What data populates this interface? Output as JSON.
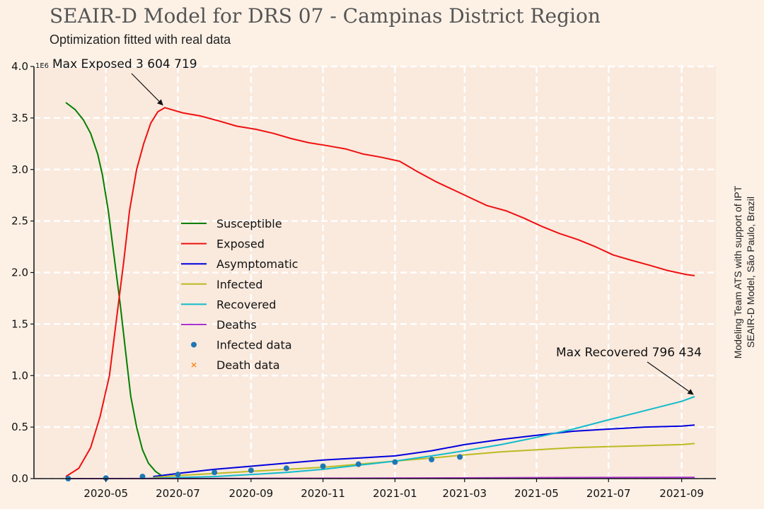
{
  "header": {
    "title": "SEAIR-D Model for DRS 07 - Campinas District Region",
    "subtitle": "Optimization fitted with real data"
  },
  "side_note": {
    "line1": "Modeling Team ATS with support of IPT",
    "line2": "SEAIR-D Model, São Paulo, Brazil"
  },
  "colors": {
    "background": "#fdf1e6",
    "plot_area": "#fae9dd",
    "grid": "#ffffff"
  },
  "chart_data": {
    "type": "line",
    "title": "SEAIR-D Model for DRS 07 - Campinas District Region",
    "subtitle": "Optimization fitted with real data",
    "xlabel": "",
    "ylabel": "",
    "y_scale_label": "1E6",
    "xlim": [
      "2020-03-01",
      "2021-09-30"
    ],
    "ylim": [
      0,
      4.0
    ],
    "grid": true,
    "legend_position": "center-left",
    "x_ticks": [
      "2020-05",
      "2020-07",
      "2020-09",
      "2020-11",
      "2021-01",
      "2021-03",
      "2021-05",
      "2021-07",
      "2021-09"
    ],
    "x_tick_dates": [
      "2020-05-01",
      "2020-07-01",
      "2020-09-01",
      "2020-11-01",
      "2021-01-01",
      "2021-03-01",
      "2021-05-01",
      "2021-07-01",
      "2021-09-01"
    ],
    "y_ticks": [
      "0.0",
      "0.5",
      "1.0",
      "1.5",
      "2.0",
      "2.5",
      "3.0",
      "3.5",
      "4.0"
    ],
    "y_tick_values": [
      0,
      0.5,
      1.0,
      1.5,
      2.0,
      2.5,
      3.0,
      3.5,
      4.0
    ],
    "series": [
      {
        "name": "Susceptible",
        "color": "#008000",
        "x": [
          "2020-03-28",
          "2020-04-05",
          "2020-04-12",
          "2020-04-18",
          "2020-04-24",
          "2020-04-28",
          "2020-05-03",
          "2020-05-08",
          "2020-05-13",
          "2020-05-18",
          "2020-05-22",
          "2020-05-27",
          "2020-06-01",
          "2020-06-06",
          "2020-06-12",
          "2020-06-17"
        ],
        "values": [
          3.65,
          3.58,
          3.48,
          3.35,
          3.15,
          2.95,
          2.6,
          2.15,
          1.7,
          1.2,
          0.8,
          0.5,
          0.28,
          0.15,
          0.07,
          0.03
        ]
      },
      {
        "name": "Exposed",
        "color": "#ee1111",
        "x": [
          "2020-03-28",
          "2020-04-08",
          "2020-04-18",
          "2020-04-26",
          "2020-05-04",
          "2020-05-10",
          "2020-05-16",
          "2020-05-21",
          "2020-05-27",
          "2020-06-02",
          "2020-06-08",
          "2020-06-14",
          "2020-06-20",
          "2020-07-05",
          "2020-07-20",
          "2020-08-05",
          "2020-08-20",
          "2020-09-05",
          "2020-09-20",
          "2020-10-05",
          "2020-10-20",
          "2020-11-05",
          "2020-11-20",
          "2020-12-05",
          "2020-12-20",
          "2021-01-05",
          "2021-01-20",
          "2021-02-05",
          "2021-02-20",
          "2021-03-05",
          "2021-03-20",
          "2021-04-05",
          "2021-04-20",
          "2021-05-05",
          "2021-05-20",
          "2021-06-05",
          "2021-06-20",
          "2021-07-05",
          "2021-07-20",
          "2021-08-05",
          "2021-08-20",
          "2021-09-05",
          "2021-09-12"
        ],
        "values": [
          0.02,
          0.1,
          0.3,
          0.6,
          1.0,
          1.55,
          2.1,
          2.6,
          3.0,
          3.25,
          3.45,
          3.56,
          3.6,
          3.55,
          3.52,
          3.47,
          3.42,
          3.39,
          3.35,
          3.3,
          3.26,
          3.23,
          3.2,
          3.15,
          3.12,
          3.08,
          2.98,
          2.88,
          2.8,
          2.73,
          2.65,
          2.6,
          2.53,
          2.45,
          2.38,
          2.32,
          2.25,
          2.17,
          2.12,
          2.07,
          2.02,
          1.98,
          1.97
        ]
      },
      {
        "name": "Asymptomatic",
        "color": "#0000dd",
        "x": [
          "2020-06-10",
          "2020-07-01",
          "2020-08-01",
          "2020-09-01",
          "2020-10-01",
          "2020-11-01",
          "2020-12-01",
          "2021-01-01",
          "2021-02-01",
          "2021-03-01",
          "2021-04-01",
          "2021-05-01",
          "2021-06-01",
          "2021-07-01",
          "2021-08-01",
          "2021-09-01",
          "2021-09-12"
        ],
        "values": [
          0.02,
          0.05,
          0.09,
          0.12,
          0.15,
          0.18,
          0.2,
          0.22,
          0.27,
          0.33,
          0.38,
          0.42,
          0.46,
          0.48,
          0.5,
          0.51,
          0.52
        ]
      },
      {
        "name": "Infected",
        "color": "#bbbb22",
        "x": [
          "2020-06-10",
          "2020-07-01",
          "2020-08-01",
          "2020-09-01",
          "2020-10-01",
          "2020-11-01",
          "2020-12-01",
          "2021-01-01",
          "2021-02-01",
          "2021-03-01",
          "2021-04-01",
          "2021-05-01",
          "2021-06-01",
          "2021-07-01",
          "2021-08-01",
          "2021-09-01",
          "2021-09-12"
        ],
        "values": [
          0.01,
          0.03,
          0.05,
          0.07,
          0.09,
          0.11,
          0.14,
          0.17,
          0.2,
          0.23,
          0.26,
          0.28,
          0.3,
          0.31,
          0.32,
          0.33,
          0.34
        ]
      },
      {
        "name": "Recovered",
        "color": "#11bbcc",
        "x": [
          "2020-06-01",
          "2020-07-01",
          "2020-08-01",
          "2020-09-01",
          "2020-10-01",
          "2020-11-01",
          "2020-12-01",
          "2021-01-01",
          "2021-02-01",
          "2021-03-01",
          "2021-04-01",
          "2021-05-01",
          "2021-06-01",
          "2021-07-01",
          "2021-08-01",
          "2021-09-01",
          "2021-09-12"
        ],
        "values": [
          0.0,
          0.01,
          0.02,
          0.04,
          0.06,
          0.09,
          0.13,
          0.17,
          0.22,
          0.27,
          0.33,
          0.4,
          0.48,
          0.57,
          0.66,
          0.75,
          0.796
        ]
      },
      {
        "name": "Deaths",
        "color": "#aa33cc",
        "x": [
          "2020-03-28",
          "2020-06-01",
          "2020-09-01",
          "2020-12-01",
          "2021-03-01",
          "2021-06-01",
          "2021-09-12"
        ],
        "values": [
          0.0,
          0.001,
          0.002,
          0.004,
          0.007,
          0.01,
          0.012
        ]
      },
      {
        "name": "Infected data",
        "color": "#1f77b4",
        "marker": "circle",
        "x": [
          "2020-03-30",
          "2020-05-01",
          "2020-06-01",
          "2020-07-01",
          "2020-08-01",
          "2020-09-01",
          "2020-10-01",
          "2020-11-01",
          "2020-12-01",
          "2021-01-01",
          "2021-02-01",
          "2021-02-25"
        ],
        "values": [
          0.0,
          0.005,
          0.02,
          0.04,
          0.06,
          0.08,
          0.1,
          0.12,
          0.14,
          0.16,
          0.185,
          0.21
        ]
      },
      {
        "name": "Death data",
        "color": "#ff7f0e",
        "marker": "x",
        "x": [],
        "values": []
      }
    ],
    "annotations": [
      {
        "text": "Max Exposed 3 604 719",
        "x": "2020-06-20",
        "y": 3.604719
      },
      {
        "text": "Max Recovered 796 434",
        "x": "2021-09-12",
        "y": 0.796434
      }
    ]
  }
}
